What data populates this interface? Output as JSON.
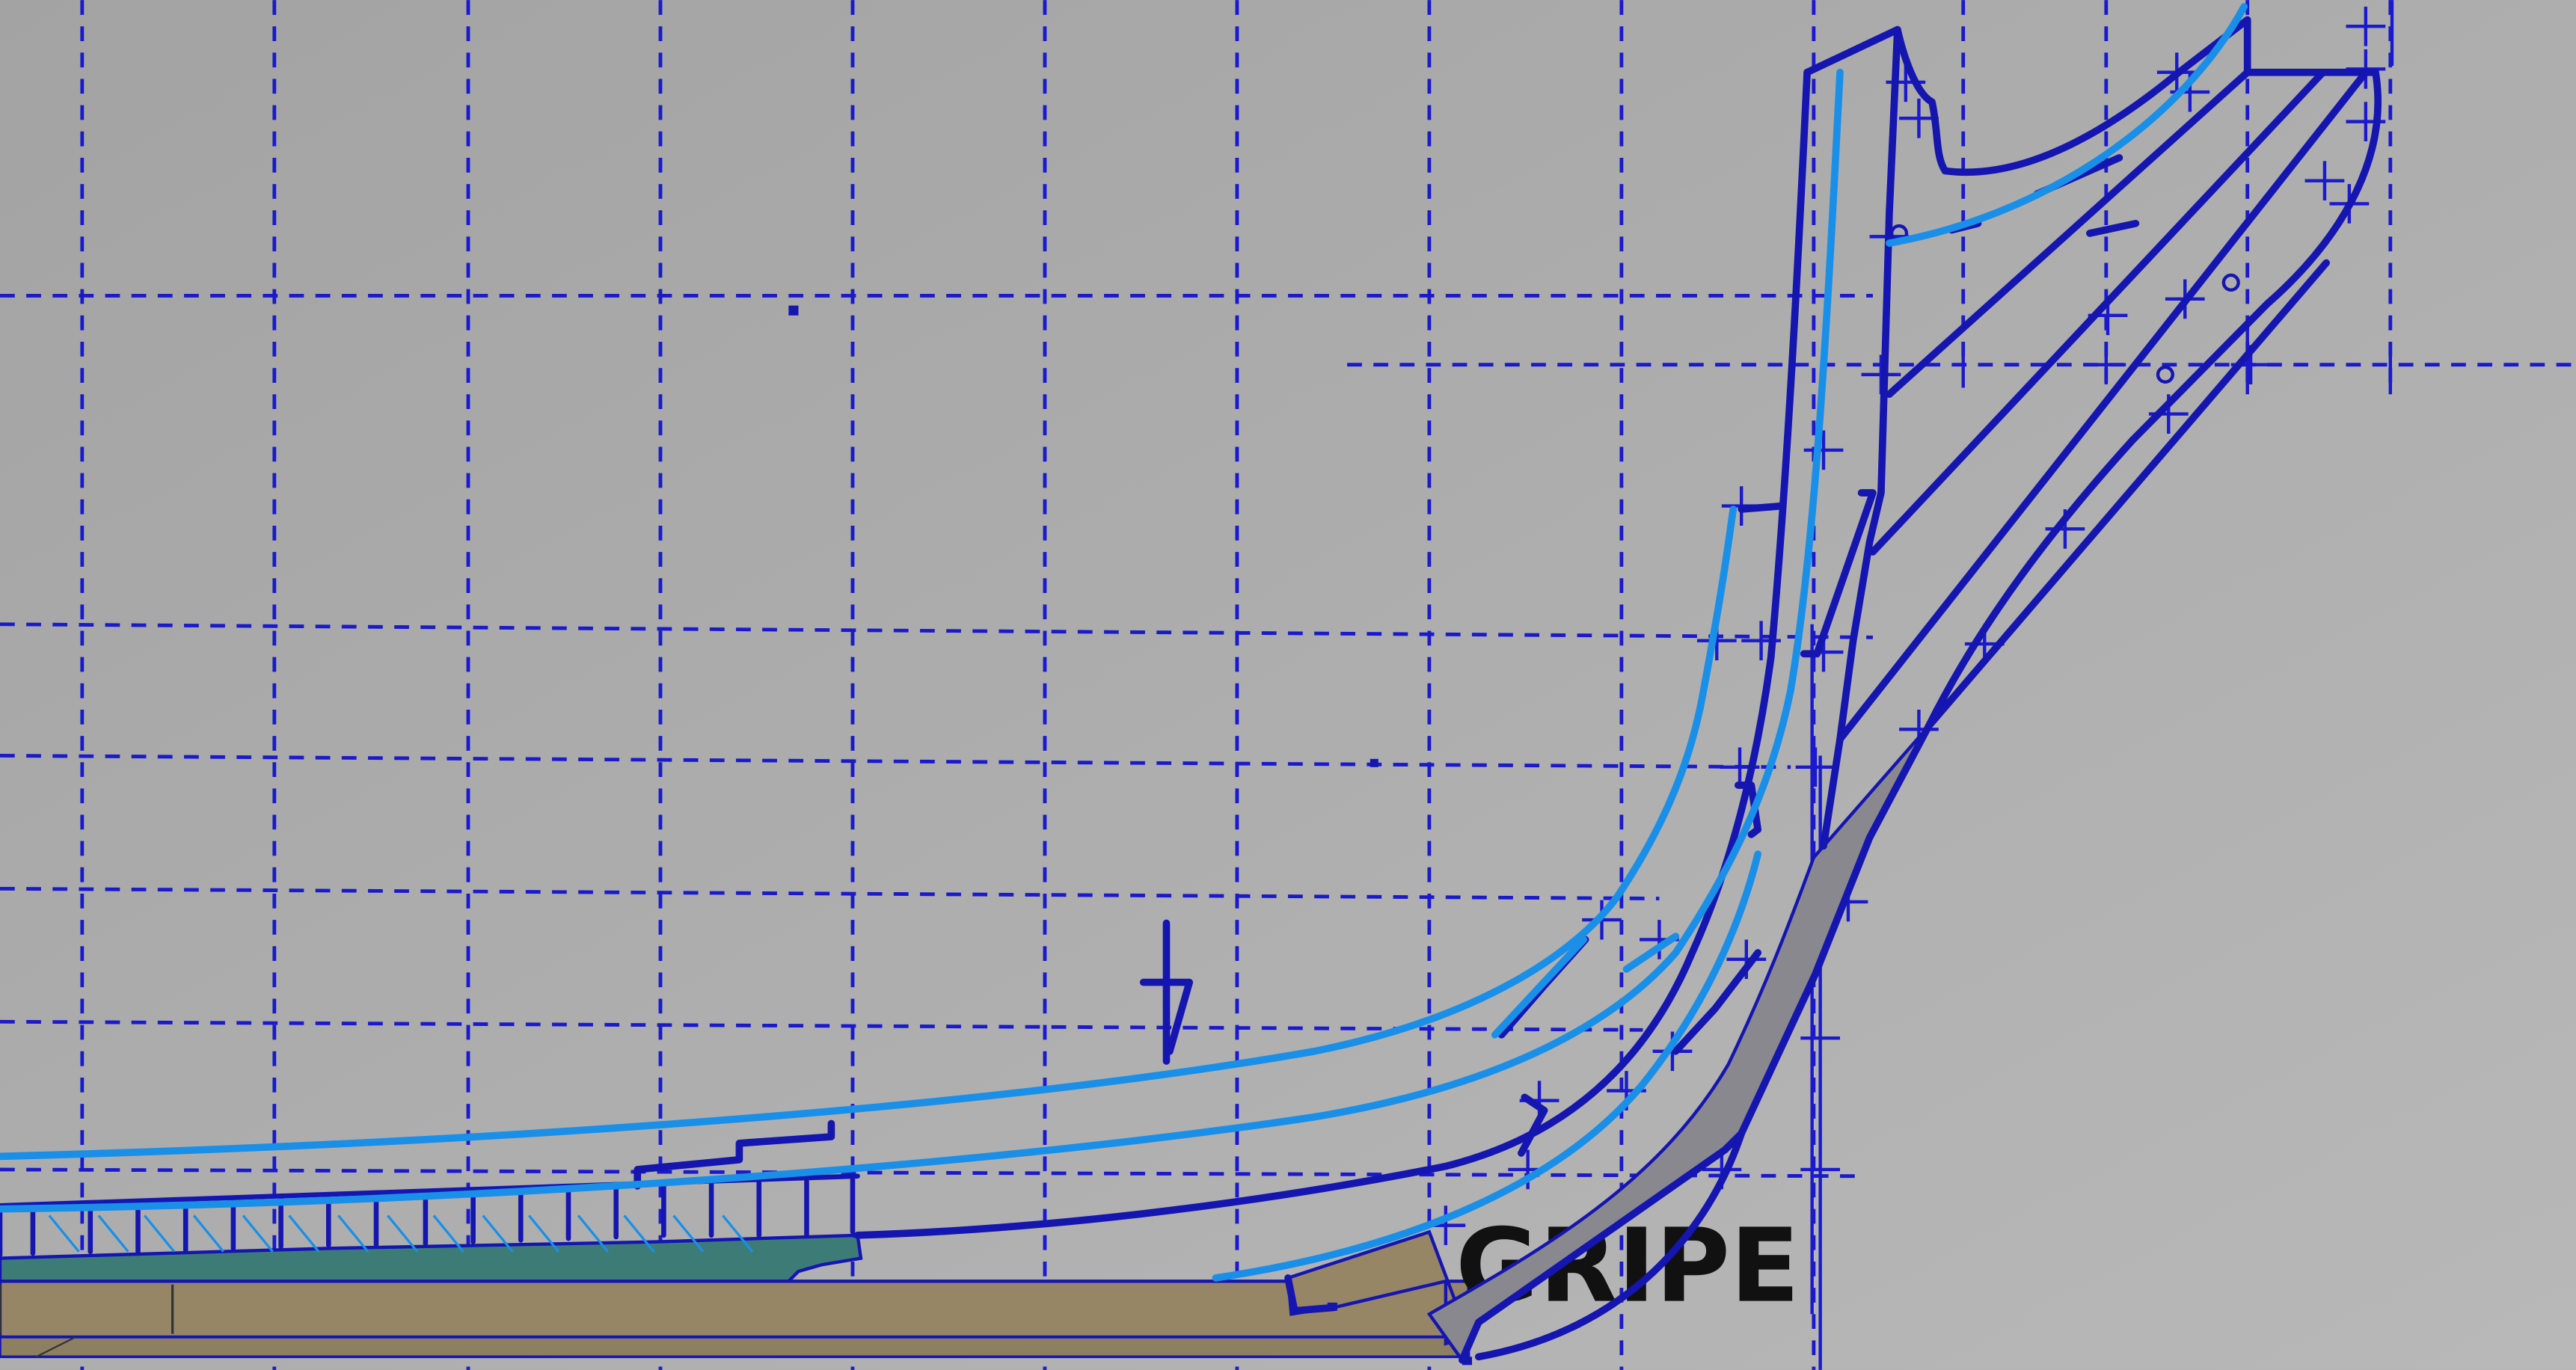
{
  "drawing": {
    "labels": {
      "gripe": "GRIPE"
    },
    "colors": {
      "background": "#a9a9a9",
      "grid": "#1a1acc",
      "outline_dark": "#1515b0",
      "outline_light": "#1a8fe8",
      "gripe_fill": "#8a8a90",
      "keel_fill": "#968666",
      "keelson_fill": "#3d7c76",
      "text": "#111111"
    }
  }
}
